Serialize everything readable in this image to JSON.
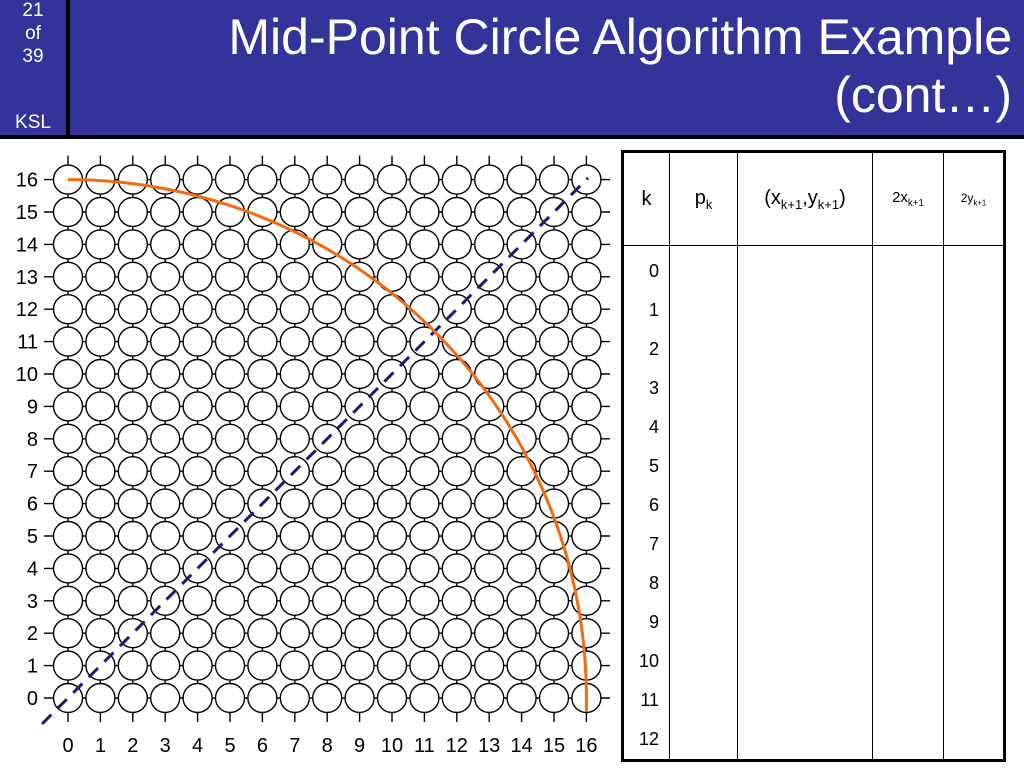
{
  "slide": {
    "page_number": "21",
    "page_of": "of",
    "page_total": "39",
    "author": "KSL",
    "title_line1": "Mid-Point Circle Algorithm Example",
    "title_line2": "(cont…)"
  },
  "grid": {
    "x_labels": [
      "0",
      "1",
      "2",
      "3",
      "4",
      "5",
      "6",
      "7",
      "8",
      "9",
      "10",
      "11",
      "12",
      "13",
      "14",
      "15",
      "16"
    ],
    "y_labels": [
      "0",
      "1",
      "2",
      "3",
      "4",
      "5",
      "6",
      "7",
      "8",
      "9",
      "10",
      "11",
      "12",
      "13",
      "14",
      "15",
      "16"
    ],
    "radius": 16,
    "arc_color": "#f26b12",
    "diagonal_color": "#1a1a7a",
    "pixel_stroke": "#000000"
  },
  "table": {
    "headers": [
      {
        "main": "k",
        "sub": ""
      },
      {
        "main": "p",
        "sub": "k"
      },
      {
        "main": "(x",
        "sub": "k+1",
        "mid": ",y",
        "sub2": "k+1",
        "end": ")"
      },
      {
        "main": "2x",
        "sub": "k+1"
      },
      {
        "main": "2y",
        "sub": "k+1"
      }
    ],
    "k_values": [
      "0",
      "1",
      "2",
      "3",
      "4",
      "5",
      "6",
      "7",
      "8",
      "9",
      "10",
      "11",
      "12"
    ]
  }
}
